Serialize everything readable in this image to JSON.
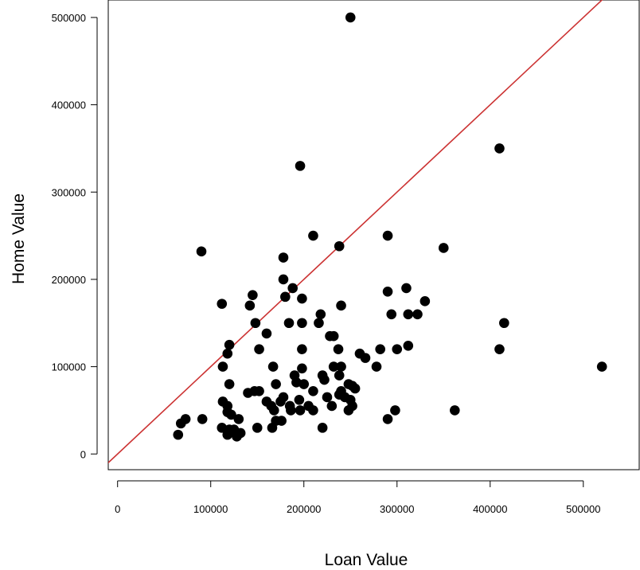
{
  "chart_data": {
    "type": "scatter",
    "xlabel": "Loan Value",
    "ylabel": "Home Value",
    "xlim": [
      -10000,
      560000
    ],
    "ylim": [
      -18000,
      520000
    ],
    "x_ticks": [
      0,
      100000,
      200000,
      300000,
      400000,
      500000
    ],
    "y_ticks": [
      0,
      100000,
      200000,
      300000,
      400000,
      500000
    ],
    "x_tick_labels": [
      "0",
      "100000",
      "200000",
      "300000",
      "400000",
      "500000"
    ],
    "y_tick_labels": [
      "0",
      "100000",
      "200000",
      "300000",
      "400000",
      "500000"
    ],
    "point_color": "#000000",
    "reference_line": {
      "type": "identity",
      "slope": 1,
      "intercept": 0,
      "color": "#cc3333"
    },
    "grid": false,
    "points": [
      [
        250000,
        500000
      ],
      [
        410000,
        350000
      ],
      [
        196000,
        330000
      ],
      [
        90000,
        232000
      ],
      [
        210000,
        250000
      ],
      [
        238000,
        238000
      ],
      [
        290000,
        250000
      ],
      [
        350000,
        236000
      ],
      [
        178000,
        225000
      ],
      [
        178000,
        200000
      ],
      [
        188000,
        190000
      ],
      [
        198000,
        178000
      ],
      [
        180000,
        180000
      ],
      [
        145000,
        182000
      ],
      [
        112000,
        172000
      ],
      [
        142000,
        170000
      ],
      [
        240000,
        170000
      ],
      [
        290000,
        186000
      ],
      [
        310000,
        190000
      ],
      [
        330000,
        175000
      ],
      [
        312000,
        160000
      ],
      [
        322000,
        160000
      ],
      [
        294000,
        160000
      ],
      [
        218000,
        160000
      ],
      [
        216000,
        150000
      ],
      [
        184000,
        150000
      ],
      [
        198000,
        150000
      ],
      [
        148000,
        150000
      ],
      [
        415000,
        150000
      ],
      [
        160000,
        138000
      ],
      [
        228000,
        135000
      ],
      [
        232000,
        135000
      ],
      [
        120000,
        125000
      ],
      [
        152000,
        120000
      ],
      [
        198000,
        120000
      ],
      [
        237000,
        120000
      ],
      [
        282000,
        120000
      ],
      [
        300000,
        120000
      ],
      [
        312000,
        124000
      ],
      [
        410000,
        120000
      ],
      [
        118000,
        115000
      ],
      [
        260000,
        115000
      ],
      [
        266000,
        110000
      ],
      [
        113000,
        100000
      ],
      [
        167000,
        100000
      ],
      [
        198000,
        98000
      ],
      [
        232000,
        100000
      ],
      [
        240000,
        100000
      ],
      [
        278000,
        100000
      ],
      [
        520000,
        100000
      ],
      [
        190000,
        90000
      ],
      [
        220000,
        90000
      ],
      [
        238000,
        90000
      ],
      [
        120000,
        80000
      ],
      [
        170000,
        80000
      ],
      [
        192000,
        82000
      ],
      [
        200000,
        80000
      ],
      [
        248000,
        80000
      ],
      [
        252000,
        78000
      ],
      [
        255000,
        75000
      ],
      [
        222000,
        85000
      ],
      [
        147000,
        72000
      ],
      [
        140000,
        70000
      ],
      [
        152000,
        72000
      ],
      [
        210000,
        72000
      ],
      [
        240000,
        72000
      ],
      [
        178000,
        65000
      ],
      [
        175000,
        60000
      ],
      [
        195000,
        62000
      ],
      [
        225000,
        65000
      ],
      [
        238000,
        68000
      ],
      [
        244000,
        65000
      ],
      [
        250000,
        62000
      ],
      [
        113000,
        60000
      ],
      [
        118000,
        55000
      ],
      [
        160000,
        60000
      ],
      [
        165000,
        55000
      ],
      [
        185000,
        55000
      ],
      [
        205000,
        55000
      ],
      [
        230000,
        55000
      ],
      [
        252000,
        55000
      ],
      [
        118000,
        48000
      ],
      [
        122000,
        45000
      ],
      [
        168000,
        50000
      ],
      [
        186000,
        50000
      ],
      [
        196000,
        50000
      ],
      [
        210000,
        50000
      ],
      [
        248000,
        50000
      ],
      [
        298000,
        50000
      ],
      [
        362000,
        50000
      ],
      [
        73000,
        40000
      ],
      [
        91000,
        40000
      ],
      [
        130000,
        40000
      ],
      [
        290000,
        40000
      ],
      [
        68000,
        35000
      ],
      [
        170000,
        38000
      ],
      [
        176000,
        38000
      ],
      [
        112000,
        30000
      ],
      [
        120000,
        28000
      ],
      [
        125000,
        28000
      ],
      [
        150000,
        30000
      ],
      [
        166000,
        30000
      ],
      [
        220000,
        30000
      ],
      [
        65000,
        22000
      ],
      [
        118000,
        22000
      ],
      [
        128000,
        20000
      ],
      [
        132000,
        24000
      ]
    ]
  }
}
